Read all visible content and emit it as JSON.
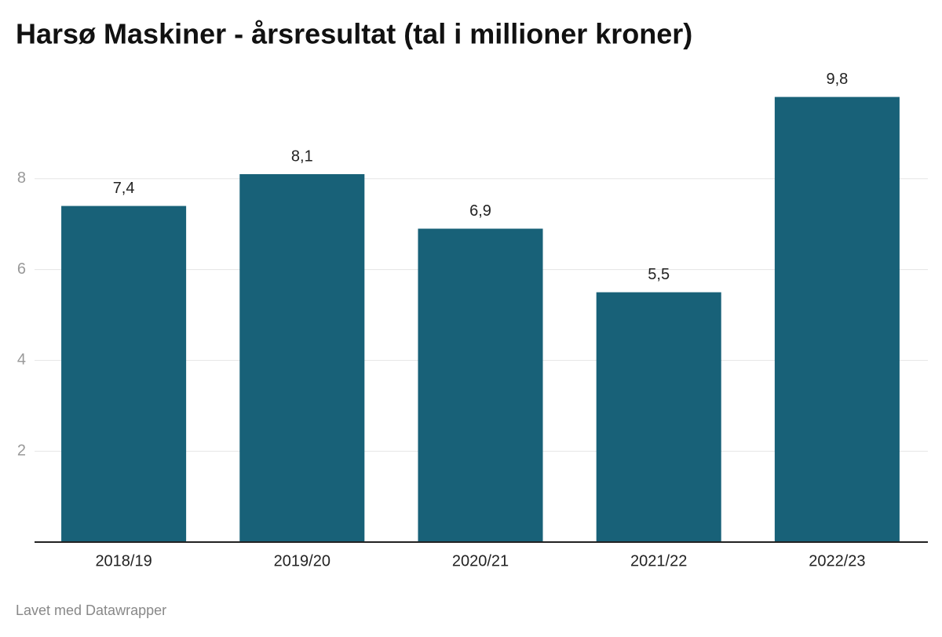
{
  "chart_data": {
    "type": "bar",
    "title": "Harsø Maskiner - årsresultat (tal i millioner kroner)",
    "categories": [
      "2018/19",
      "2019/20",
      "2020/21",
      "2021/22",
      "2022/23"
    ],
    "values": [
      7.4,
      8.1,
      6.9,
      5.5,
      9.8
    ],
    "value_labels": [
      "7,4",
      "8,1",
      "6,9",
      "5,5",
      "9,8"
    ],
    "color": "#186178",
    "ylim": [
      0,
      10
    ],
    "yticks": [
      2,
      4,
      6,
      8
    ],
    "grid": true,
    "credit": "Lavet med Datawrapper"
  }
}
